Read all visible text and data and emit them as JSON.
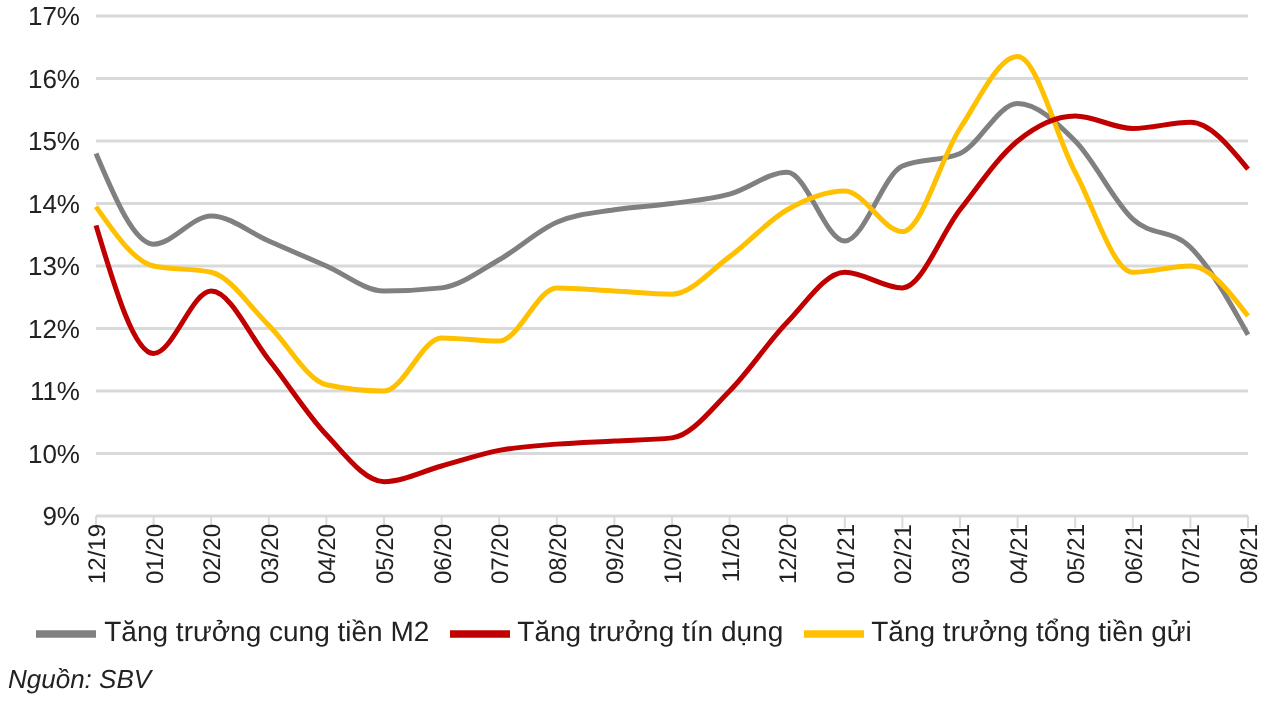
{
  "chart_data": {
    "type": "line",
    "categories": [
      "12/19",
      "01/20",
      "02/20",
      "03/20",
      "04/20",
      "05/20",
      "06/20",
      "07/20",
      "08/20",
      "09/20",
      "10/20",
      "11/20",
      "12/20",
      "01/21",
      "02/21",
      "03/21",
      "04/21",
      "05/21",
      "06/21",
      "07/21",
      "08/21"
    ],
    "series": [
      {
        "name": "Tăng trưởng cung tiền M2",
        "color": "#808080",
        "values": [
          14.8,
          13.35,
          13.8,
          13.4,
          13.0,
          12.6,
          12.65,
          13.1,
          13.7,
          13.9,
          14.0,
          14.15,
          14.5,
          13.4,
          14.6,
          14.8,
          15.6,
          15.0,
          13.75,
          13.3,
          11.9
        ]
      },
      {
        "name": "Tăng trưởng tổng tiền gửi",
        "color": "#ffc000",
        "values": [
          13.95,
          13.0,
          12.9,
          12.05,
          11.1,
          11.0,
          11.85,
          11.8,
          12.65,
          12.6,
          12.55,
          13.15,
          13.9,
          14.2,
          13.55,
          15.2,
          16.35,
          14.5,
          12.9,
          13.0,
          12.2
        ]
      },
      {
        "name": "Tăng trưởng tín dụng",
        "color": "#c00000",
        "values": [
          13.65,
          11.6,
          12.6,
          11.5,
          10.3,
          9.55,
          9.8,
          10.05,
          10.15,
          10.2,
          10.25,
          11.0,
          12.1,
          12.9,
          12.65,
          13.9,
          15.0,
          15.4,
          15.2,
          15.3,
          14.55
        ]
      }
    ],
    "ylim": [
      9,
      17
    ],
    "yticks": [
      {
        "value": 9,
        "label": "9%"
      },
      {
        "value": 10,
        "label": "10%"
      },
      {
        "value": 11,
        "label": "11%"
      },
      {
        "value": 12,
        "label": "12%"
      },
      {
        "value": 13,
        "label": "13%"
      },
      {
        "value": 14,
        "label": "14%"
      },
      {
        "value": 15,
        "label": "15%"
      },
      {
        "value": 16,
        "label": "16%"
      },
      {
        "value": 17,
        "label": "17%"
      }
    ],
    "grid": "y",
    "legend": "bottom",
    "marker": "none",
    "line_style": "solid",
    "annotations": [
      "Nguồn: SBV"
    ]
  }
}
